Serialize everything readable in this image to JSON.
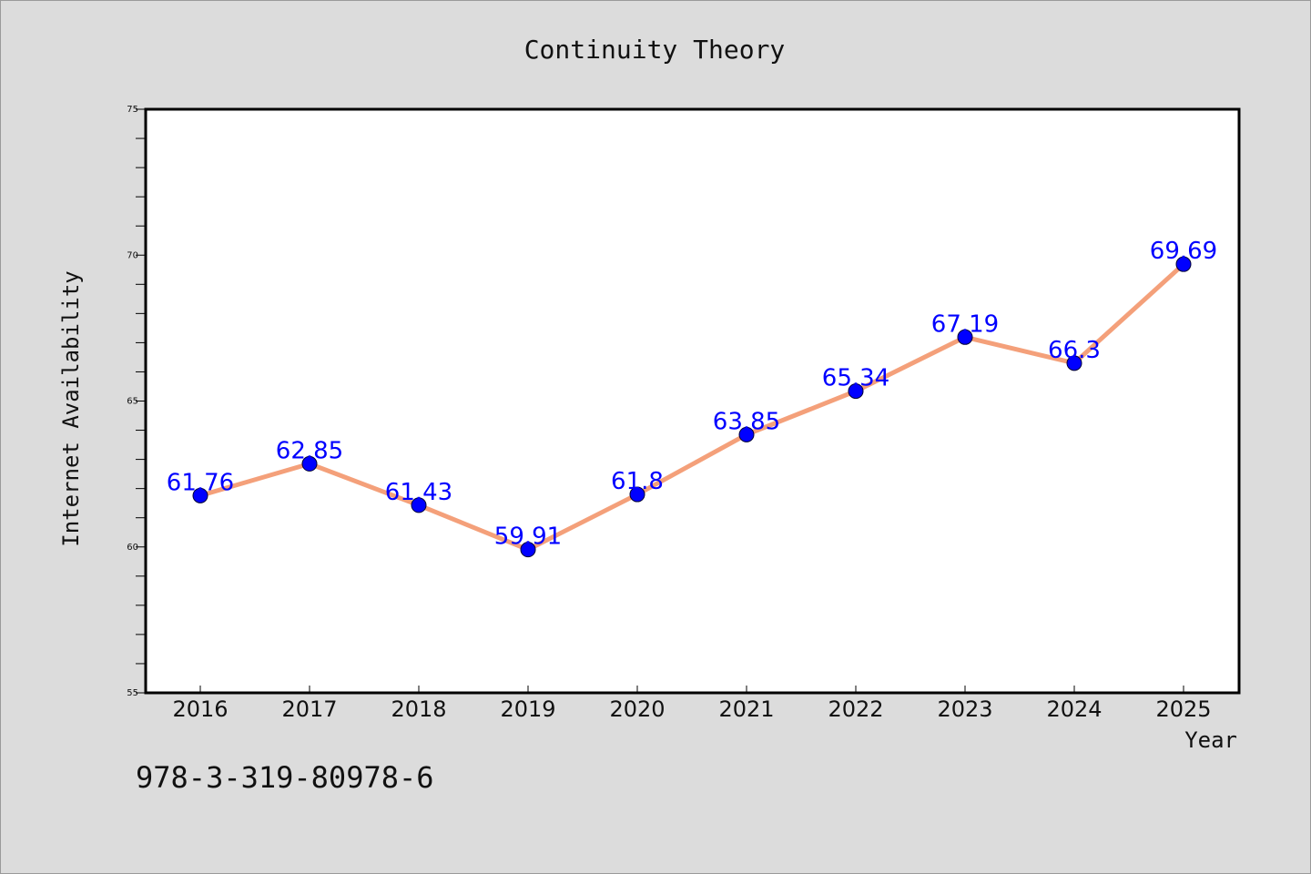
{
  "chart_data": {
    "type": "line",
    "title": "Continuity Theory",
    "xlabel": "Year",
    "ylabel": "Internet Availability",
    "categories": [
      "2016",
      "2017",
      "2018",
      "2019",
      "2020",
      "2021",
      "2022",
      "2023",
      "2024",
      "2025"
    ],
    "series": [
      {
        "values": [
          61.76,
          62.85,
          61.43,
          59.91,
          61.8,
          63.85,
          65.34,
          67.19,
          66.3,
          69.69
        ],
        "labels": [
          "61.76",
          "62.85",
          "61.43",
          "59.91",
          "61.8",
          "63.85",
          "65.34",
          "67.19",
          "66.3",
          "69.69"
        ],
        "line_color": "#f4a07a",
        "marker_color": "#0000ff",
        "label_color": "#0000ff"
      }
    ],
    "ylim": [
      55,
      75
    ],
    "yticks": [
      "55",
      "60",
      "65",
      "70",
      "75"
    ],
    "grid": false,
    "legend": "none"
  },
  "footer": {
    "isbn": "978-3-319-80978-6"
  }
}
